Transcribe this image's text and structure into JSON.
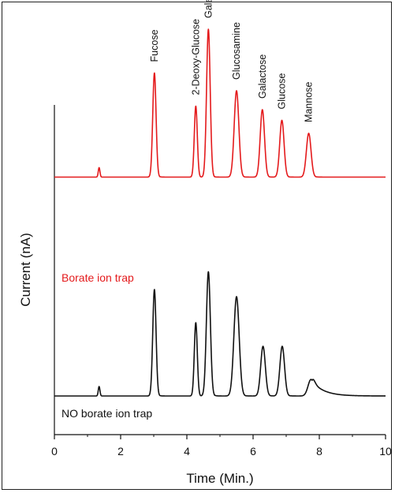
{
  "chart_data": {
    "type": "line",
    "title": "",
    "xlabel": "Time (Min.)",
    "ylabel": "Current (nA)",
    "xlim": [
      0,
      10
    ],
    "xticks": [
      0,
      2,
      4,
      6,
      8,
      10
    ],
    "yticks_shown": false,
    "grid": false,
    "peak_labels": [
      {
        "name": "Fucose",
        "x": 3.02
      },
      {
        "name": "2-Deoxy-Glucose",
        "x": 4.27
      },
      {
        "name": "Galactosamine",
        "x": 4.65
      },
      {
        "name": "Glucosamine",
        "x": 5.5
      },
      {
        "name": "Galactose",
        "x": 6.28
      },
      {
        "name": "Glucose",
        "x": 6.87
      },
      {
        "name": "Mannose",
        "x": 7.68
      }
    ],
    "series": [
      {
        "name": "Borate ion trap",
        "color": "#e41a1c",
        "baseline": 1.85,
        "peaks": [
          {
            "x": 1.35,
            "height": 0.08,
            "width": 0.025,
            "tail": 0.0
          },
          {
            "x": 3.02,
            "height": 0.88,
            "width": 0.05,
            "tail": 0.04
          },
          {
            "x": 4.27,
            "height": 0.6,
            "width": 0.045,
            "tail": 0.03
          },
          {
            "x": 4.65,
            "height": 1.25,
            "width": 0.055,
            "tail": 0.04
          },
          {
            "x": 5.5,
            "height": 0.73,
            "width": 0.07,
            "tail": 0.05
          },
          {
            "x": 6.28,
            "height": 0.57,
            "width": 0.065,
            "tail": 0.05
          },
          {
            "x": 6.87,
            "height": 0.48,
            "width": 0.065,
            "tail": 0.05
          },
          {
            "x": 7.68,
            "height": 0.37,
            "width": 0.07,
            "tail": 0.06
          }
        ]
      },
      {
        "name": "NO borate ion trap",
        "color": "#111111",
        "baseline": 0.0,
        "peaks": [
          {
            "x": 1.35,
            "height": 0.08,
            "width": 0.025,
            "tail": 0.0
          },
          {
            "x": 3.02,
            "height": 0.9,
            "width": 0.05,
            "tail": 0.04
          },
          {
            "x": 4.27,
            "height": 0.62,
            "width": 0.045,
            "tail": 0.03
          },
          {
            "x": 4.65,
            "height": 1.05,
            "width": 0.06,
            "tail": 0.05
          },
          {
            "x": 5.5,
            "height": 0.84,
            "width": 0.08,
            "tail": 0.06
          },
          {
            "x": 6.3,
            "height": 0.42,
            "width": 0.07,
            "tail": 0.06
          },
          {
            "x": 6.88,
            "height": 0.42,
            "width": 0.07,
            "tail": 0.06
          },
          {
            "x": 7.75,
            "height": 0.14,
            "width": 0.09,
            "tail": 0.35
          }
        ]
      }
    ]
  }
}
